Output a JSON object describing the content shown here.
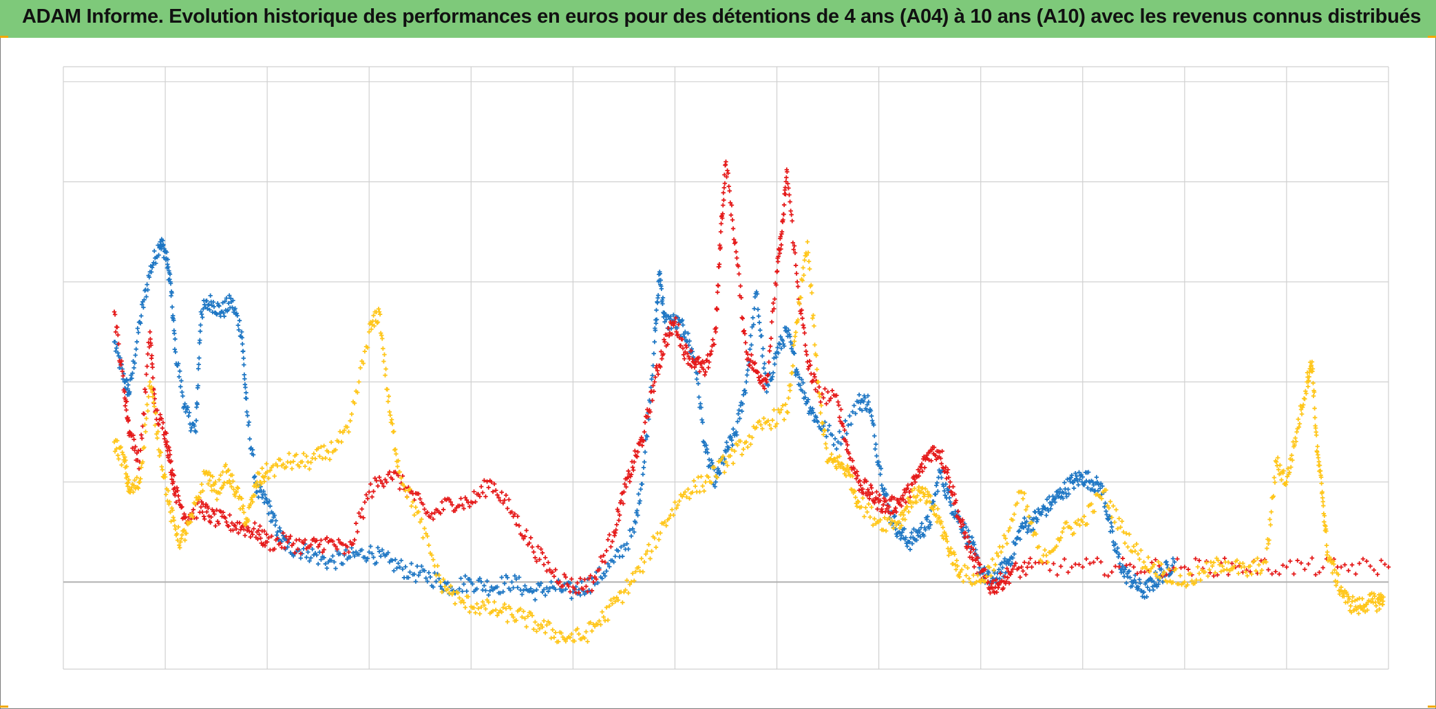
{
  "title": "ADAM Informe. Evolution historique des performances en euros pour des détentions de 4 ans (A04) à 10 ans (A10) avec les revenus connus distribués",
  "colors": {
    "title_bg": "#7ec97a",
    "grid": "#d0d0d0",
    "axis": "#b0b0b0"
  },
  "chart_data": {
    "type": "scatter",
    "marker": "plus",
    "x": {
      "min": 0,
      "max": 13,
      "ticks": [
        0,
        1,
        2,
        3,
        4,
        5,
        6,
        7,
        8,
        9,
        10,
        11,
        12,
        13
      ],
      "tick_labels": []
    },
    "y": {
      "min": -0.87,
      "max": 5.15,
      "ticks": [
        0,
        1,
        2,
        3,
        4,
        5
      ],
      "tick_labels": []
    },
    "grid": true,
    "legend": "none",
    "series": [
      {
        "color": "#1f77c4",
        "points": [
          [
            0.5,
            2.4
          ],
          [
            0.6,
            2.0
          ],
          [
            0.65,
            1.9
          ],
          [
            0.75,
            2.6
          ],
          [
            0.85,
            3.1
          ],
          [
            0.95,
            3.4
          ],
          [
            1.0,
            3.3
          ],
          [
            1.05,
            3.0
          ],
          [
            1.1,
            2.3
          ],
          [
            1.2,
            1.7
          ],
          [
            1.3,
            1.5
          ],
          [
            1.35,
            2.7
          ],
          [
            1.45,
            2.8
          ],
          [
            1.55,
            2.7
          ],
          [
            1.65,
            2.8
          ],
          [
            1.75,
            2.5
          ],
          [
            1.8,
            1.7
          ],
          [
            1.9,
            0.9
          ],
          [
            2.0,
            0.8
          ],
          [
            2.1,
            0.5
          ],
          [
            2.2,
            0.35
          ],
          [
            2.4,
            0.3
          ],
          [
            2.6,
            0.2
          ],
          [
            2.8,
            0.25
          ],
          [
            3.0,
            0.3
          ],
          [
            3.2,
            0.2
          ],
          [
            3.4,
            0.1
          ],
          [
            3.6,
            0.05
          ],
          [
            3.8,
            -0.05
          ],
          [
            4.0,
            0.0
          ],
          [
            4.2,
            -0.05
          ],
          [
            4.4,
            0.0
          ],
          [
            4.6,
            -0.1
          ],
          [
            4.8,
            -0.05
          ],
          [
            5.0,
            -0.1
          ],
          [
            5.2,
            0.0
          ],
          [
            5.4,
            0.2
          ],
          [
            5.6,
            0.5
          ],
          [
            5.7,
            1.2
          ],
          [
            5.8,
            2.4
          ],
          [
            5.85,
            3.1
          ],
          [
            5.9,
            2.6
          ],
          [
            6.0,
            2.6
          ],
          [
            6.1,
            2.5
          ],
          [
            6.2,
            2.2
          ],
          [
            6.3,
            1.3
          ],
          [
            6.4,
            1.0
          ],
          [
            6.5,
            1.3
          ],
          [
            6.6,
            1.5
          ],
          [
            6.7,
            2.0
          ],
          [
            6.8,
            2.9
          ],
          [
            6.9,
            1.9
          ],
          [
            7.0,
            2.3
          ],
          [
            7.1,
            2.5
          ],
          [
            7.2,
            2.1
          ],
          [
            7.3,
            1.8
          ],
          [
            7.4,
            1.6
          ],
          [
            7.6,
            1.4
          ],
          [
            7.8,
            1.8
          ],
          [
            7.9,
            1.8
          ],
          [
            8.0,
            1.2
          ],
          [
            8.1,
            0.7
          ],
          [
            8.2,
            0.5
          ],
          [
            8.3,
            0.4
          ],
          [
            8.4,
            0.5
          ],
          [
            8.5,
            0.6
          ],
          [
            8.6,
            1.1
          ],
          [
            8.7,
            0.8
          ],
          [
            8.8,
            0.6
          ],
          [
            8.9,
            0.4
          ],
          [
            9.0,
            0.1
          ],
          [
            9.1,
            0.0
          ],
          [
            9.2,
            0.1
          ],
          [
            9.3,
            0.25
          ],
          [
            9.4,
            0.55
          ],
          [
            9.5,
            0.6
          ],
          [
            9.6,
            0.7
          ],
          [
            9.7,
            0.8
          ],
          [
            9.8,
            0.9
          ],
          [
            9.9,
            1.0
          ],
          [
            10.0,
            1.05
          ],
          [
            10.1,
            1.0
          ],
          [
            10.2,
            0.9
          ],
          [
            10.3,
            0.4
          ],
          [
            10.4,
            0.1
          ],
          [
            10.5,
            0.0
          ],
          [
            10.6,
            -0.1
          ],
          [
            10.7,
            0.0
          ],
          [
            10.8,
            0.1
          ],
          [
            10.9,
            0.2
          ]
        ]
      },
      {
        "color": "#e51a1a",
        "points": [
          [
            0.5,
            2.7
          ],
          [
            0.6,
            1.9
          ],
          [
            0.65,
            1.5
          ],
          [
            0.75,
            1.2
          ],
          [
            0.85,
            2.5
          ],
          [
            0.9,
            1.7
          ],
          [
            1.0,
            1.5
          ],
          [
            1.05,
            1.2
          ],
          [
            1.1,
            0.9
          ],
          [
            1.2,
            0.65
          ],
          [
            1.35,
            0.75
          ],
          [
            1.45,
            0.65
          ],
          [
            1.6,
            0.6
          ],
          [
            1.75,
            0.55
          ],
          [
            1.9,
            0.5
          ],
          [
            2.0,
            0.4
          ],
          [
            2.2,
            0.4
          ],
          [
            2.4,
            0.35
          ],
          [
            2.6,
            0.4
          ],
          [
            2.8,
            0.3
          ],
          [
            3.0,
            0.9
          ],
          [
            3.2,
            1.1
          ],
          [
            3.4,
            0.9
          ],
          [
            3.6,
            0.65
          ],
          [
            3.8,
            0.8
          ],
          [
            4.0,
            0.8
          ],
          [
            4.2,
            1.0
          ],
          [
            4.4,
            0.7
          ],
          [
            4.6,
            0.35
          ],
          [
            4.8,
            0.1
          ],
          [
            5.0,
            -0.05
          ],
          [
            5.2,
            0.0
          ],
          [
            5.4,
            0.5
          ],
          [
            5.5,
            0.9
          ],
          [
            5.6,
            1.2
          ],
          [
            5.7,
            1.5
          ],
          [
            5.8,
            2.0
          ],
          [
            5.9,
            2.4
          ],
          [
            6.0,
            2.6
          ],
          [
            6.1,
            2.3
          ],
          [
            6.2,
            2.2
          ],
          [
            6.3,
            2.1
          ],
          [
            6.4,
            2.5
          ],
          [
            6.45,
            3.5
          ],
          [
            6.5,
            4.2
          ],
          [
            6.6,
            3.3
          ],
          [
            6.7,
            2.3
          ],
          [
            6.8,
            2.1
          ],
          [
            6.9,
            2.0
          ],
          [
            7.0,
            3.1
          ],
          [
            7.05,
            3.5
          ],
          [
            7.1,
            4.1
          ],
          [
            7.2,
            3.0
          ],
          [
            7.3,
            2.2
          ],
          [
            7.4,
            1.9
          ],
          [
            7.6,
            1.8
          ],
          [
            7.7,
            1.3
          ],
          [
            7.8,
            1.0
          ],
          [
            7.9,
            0.9
          ],
          [
            8.0,
            0.8
          ],
          [
            8.1,
            0.75
          ],
          [
            8.2,
            0.8
          ],
          [
            8.3,
            0.9
          ],
          [
            8.4,
            1.1
          ],
          [
            8.5,
            1.3
          ],
          [
            8.6,
            1.3
          ],
          [
            8.7,
            1.0
          ],
          [
            8.8,
            0.6
          ],
          [
            8.9,
            0.3
          ],
          [
            9.0,
            0.1
          ],
          [
            9.1,
            -0.05
          ],
          [
            9.2,
            0.0
          ],
          [
            9.3,
            0.1
          ],
          [
            9.5,
            0.15
          ],
          [
            10.0,
            0.15
          ],
          [
            10.5,
            0.15
          ],
          [
            11.0,
            0.15
          ],
          [
            11.5,
            0.15
          ],
          [
            12.0,
            0.15
          ],
          [
            12.5,
            0.15
          ],
          [
            13.0,
            0.15
          ]
        ]
      },
      {
        "color": "#ffc61a",
        "points": [
          [
            0.5,
            1.4
          ],
          [
            0.6,
            1.2
          ],
          [
            0.65,
            0.9
          ],
          [
            0.75,
            1.0
          ],
          [
            0.85,
            2.0
          ],
          [
            0.95,
            1.3
          ],
          [
            1.05,
            0.7
          ],
          [
            1.15,
            0.4
          ],
          [
            1.25,
            0.6
          ],
          [
            1.4,
            1.1
          ],
          [
            1.5,
            0.9
          ],
          [
            1.6,
            1.1
          ],
          [
            1.7,
            0.9
          ],
          [
            1.8,
            0.6
          ],
          [
            1.9,
            1.0
          ],
          [
            2.0,
            1.1
          ],
          [
            2.2,
            1.2
          ],
          [
            2.4,
            1.2
          ],
          [
            2.6,
            1.3
          ],
          [
            2.8,
            1.5
          ],
          [
            3.0,
            2.5
          ],
          [
            3.1,
            2.7
          ],
          [
            3.2,
            1.7
          ],
          [
            3.3,
            1.1
          ],
          [
            3.5,
            0.6
          ],
          [
            3.7,
            0.0
          ],
          [
            3.9,
            -0.2
          ],
          [
            4.1,
            -0.25
          ],
          [
            4.3,
            -0.3
          ],
          [
            4.5,
            -0.35
          ],
          [
            4.7,
            -0.45
          ],
          [
            4.9,
            -0.55
          ],
          [
            5.1,
            -0.55
          ],
          [
            5.3,
            -0.35
          ],
          [
            5.5,
            -0.1
          ],
          [
            5.7,
            0.2
          ],
          [
            5.9,
            0.6
          ],
          [
            6.1,
            0.9
          ],
          [
            6.3,
            1.0
          ],
          [
            6.5,
            1.2
          ],
          [
            6.7,
            1.4
          ],
          [
            6.9,
            1.6
          ],
          [
            7.1,
            1.7
          ],
          [
            7.2,
            2.6
          ],
          [
            7.3,
            3.4
          ],
          [
            7.4,
            2.0
          ],
          [
            7.5,
            1.2
          ],
          [
            7.6,
            1.2
          ],
          [
            7.7,
            1.1
          ],
          [
            7.8,
            0.8
          ],
          [
            8.0,
            0.6
          ],
          [
            8.2,
            0.6
          ],
          [
            8.3,
            0.8
          ],
          [
            8.4,
            0.9
          ],
          [
            8.5,
            0.8
          ],
          [
            8.6,
            0.6
          ],
          [
            8.7,
            0.3
          ],
          [
            8.8,
            0.1
          ],
          [
            9.0,
            0.0
          ],
          [
            9.2,
            0.3
          ],
          [
            9.4,
            0.9
          ],
          [
            9.6,
            0.2
          ],
          [
            9.8,
            0.5
          ],
          [
            10.0,
            0.6
          ],
          [
            10.2,
            0.9
          ],
          [
            10.4,
            0.5
          ],
          [
            10.6,
            0.2
          ],
          [
            10.8,
            0.1
          ],
          [
            11.0,
            0.0
          ],
          [
            11.2,
            0.1
          ],
          [
            11.4,
            0.2
          ],
          [
            11.6,
            0.1
          ],
          [
            11.8,
            0.2
          ],
          [
            11.9,
            1.2
          ],
          [
            12.0,
            1.0
          ],
          [
            12.1,
            1.5
          ],
          [
            12.2,
            2.0
          ],
          [
            12.25,
            2.2
          ],
          [
            12.3,
            1.3
          ],
          [
            12.35,
            0.9
          ],
          [
            12.4,
            0.3
          ],
          [
            12.5,
            0.0
          ],
          [
            12.6,
            -0.2
          ],
          [
            12.7,
            -0.25
          ],
          [
            12.8,
            -0.2
          ],
          [
            12.9,
            -0.2
          ],
          [
            12.95,
            -0.15
          ]
        ]
      }
    ]
  }
}
